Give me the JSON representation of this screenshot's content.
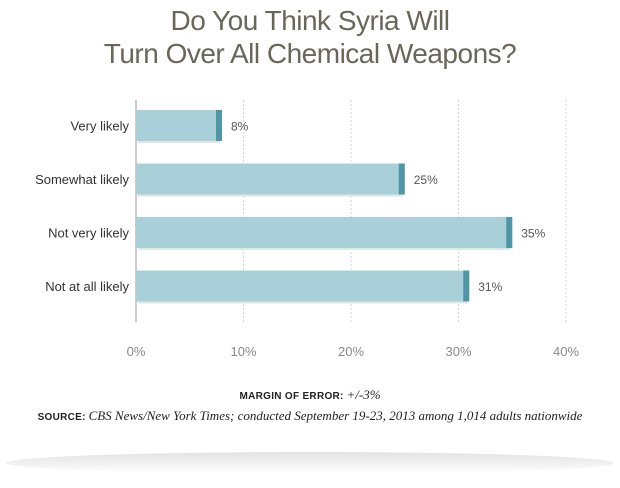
{
  "chart_data": {
    "type": "bar",
    "orientation": "horizontal",
    "title_lines": [
      "Do You Think Syria Will",
      "Turn Over All Chemical Weapons?"
    ],
    "categories": [
      "Very likely",
      "Somewhat likely",
      "Not very likely",
      "Not at all likely"
    ],
    "values": [
      8,
      25,
      35,
      31
    ],
    "value_labels": [
      "8%",
      "25%",
      "35%",
      "31%"
    ],
    "xlim": [
      0,
      40
    ],
    "x_ticks": [
      0,
      10,
      20,
      30,
      40
    ],
    "x_tick_labels": [
      "0%",
      "10%",
      "20%",
      "30%",
      "40%"
    ],
    "grid": "vertical dashed",
    "colors": {
      "bar": "#a9cfd8",
      "bar_end": "#4f96a6",
      "grid": "#d6d6d6",
      "text": "#333333"
    }
  },
  "footer": {
    "moe_label": "MARGIN OF ERROR:",
    "moe_value": "+/-3%",
    "source_label": "SOURCE:",
    "source_text": "CBS News/New York Times; conducted September 19-23, 2013 among 1,014 adults nationwide"
  }
}
